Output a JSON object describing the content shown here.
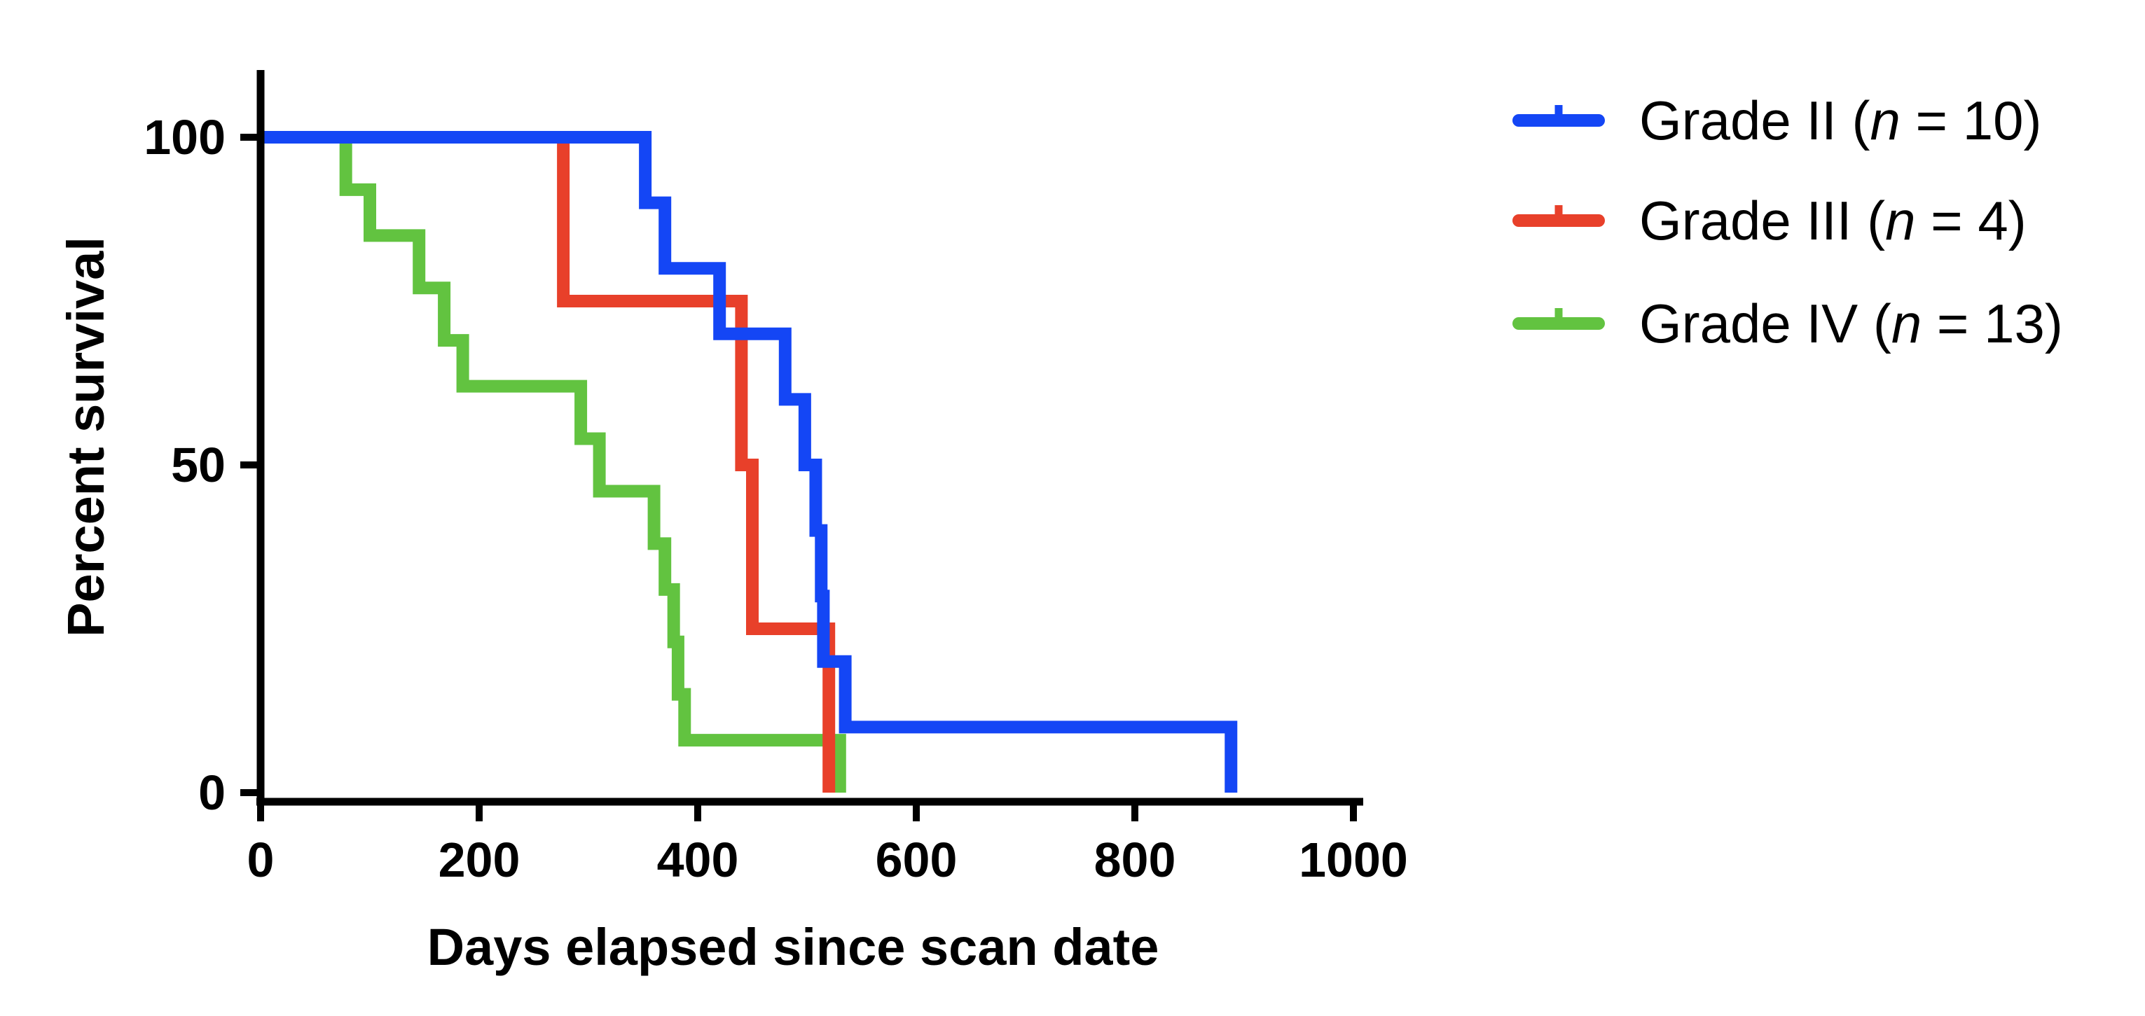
{
  "chart_data": {
    "type": "line",
    "subtype": "kaplan-meier step",
    "title": "",
    "xlabel": "Days elapsed since scan date",
    "ylabel": "Percent survival",
    "xlim": [
      0,
      1000
    ],
    "ylim": [
      0,
      110
    ],
    "xticks": [
      0,
      200,
      400,
      600,
      800,
      1000
    ],
    "xtick_labels": [
      "0",
      "200",
      "400",
      "600",
      "800",
      "1000"
    ],
    "yticks": [
      0,
      50,
      100
    ],
    "ytick_labels": [
      "0",
      "50",
      "100"
    ],
    "grid": false,
    "legend_position": "right",
    "series": [
      {
        "name": "Grade II",
        "n_label": "n",
        "n_value": "= 10)",
        "color": "#1446F5",
        "steps": [
          [
            0,
            100
          ],
          [
            352,
            90
          ],
          [
            370,
            80
          ],
          [
            420,
            70
          ],
          [
            480,
            60
          ],
          [
            498,
            50
          ],
          [
            508,
            40
          ],
          [
            513,
            30
          ],
          [
            515,
            20
          ],
          [
            535,
            10
          ],
          [
            888,
            0
          ]
        ],
        "end_x": 888
      },
      {
        "name": "Grade III",
        "n_label": "n",
        "n_value": "= 4)",
        "color": "#E8402A",
        "steps": [
          [
            0,
            100
          ],
          [
            277,
            75
          ],
          [
            440,
            50
          ],
          [
            450,
            25
          ],
          [
            520,
            0
          ]
        ],
        "end_x": 520
      },
      {
        "name": "Grade IV",
        "n_label": "n",
        "n_value": "= 13)",
        "color": "#62C340",
        "steps": [
          [
            0,
            100
          ],
          [
            78,
            92
          ],
          [
            100,
            85
          ],
          [
            145,
            77
          ],
          [
            168,
            69
          ],
          [
            185,
            62
          ],
          [
            293,
            54
          ],
          [
            310,
            46
          ],
          [
            360,
            38
          ],
          [
            370,
            31
          ],
          [
            378,
            23
          ],
          [
            382,
            15
          ],
          [
            388,
            8
          ],
          [
            530,
            0
          ]
        ],
        "end_x": 530
      }
    ]
  }
}
